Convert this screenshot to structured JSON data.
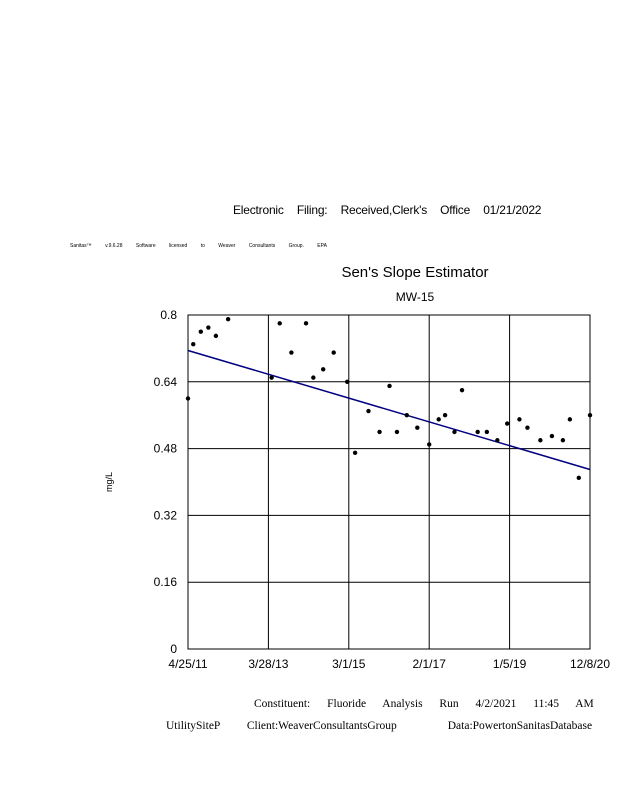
{
  "header": {
    "filing_text": "Electronic Filing: Received,Clerk's Office 01/21/2022",
    "software_line": "Sanitas™ v.9.6.28 Software licensed to Weaver Consultants Group. EPA"
  },
  "footer": {
    "constituent_line": "Constituent: Fluoride Analysis Run 4/2/2021 11:45 AM",
    "site": "UtilitySiteP",
    "client": "Client:WeaverConsultantsGroup",
    "data_source": "Data:PowertonSanitasDatabase"
  },
  "chart_data": {
    "type": "scatter",
    "title": "Sen's Slope Estimator",
    "subtitle": "MW-15",
    "ylabel": "mg/L",
    "xlabel": "",
    "ylim": [
      0,
      0.8
    ],
    "xlim": [
      "2011-04-25",
      "2020-12-08"
    ],
    "y_ticks": [
      "0",
      "0.16",
      "0.32",
      "0.48",
      "0.64",
      "0.8"
    ],
    "x_ticks": [
      "4/25/11",
      "3/28/13",
      "3/1/15",
      "2/1/17",
      "1/5/19",
      "12/8/20"
    ],
    "grid": true,
    "points": [
      {
        "x": "2011-04-25",
        "y": 0.6
      },
      {
        "x": "2011-06-10",
        "y": 0.73
      },
      {
        "x": "2011-08-15",
        "y": 0.76
      },
      {
        "x": "2011-10-20",
        "y": 0.77
      },
      {
        "x": "2011-12-25",
        "y": 0.75
      },
      {
        "x": "2012-04-10",
        "y": 0.79
      },
      {
        "x": "2013-04-25",
        "y": 0.65
      },
      {
        "x": "2013-07-05",
        "y": 0.78
      },
      {
        "x": "2013-10-15",
        "y": 0.71
      },
      {
        "x": "2014-02-20",
        "y": 0.78
      },
      {
        "x": "2014-04-25",
        "y": 0.65
      },
      {
        "x": "2014-07-20",
        "y": 0.67
      },
      {
        "x": "2014-10-20",
        "y": 0.71
      },
      {
        "x": "2015-02-15",
        "y": 0.64
      },
      {
        "x": "2015-04-25",
        "y": 0.47
      },
      {
        "x": "2015-08-20",
        "y": 0.57
      },
      {
        "x": "2015-11-25",
        "y": 0.52
      },
      {
        "x": "2016-02-20",
        "y": 0.63
      },
      {
        "x": "2016-04-25",
        "y": 0.52
      },
      {
        "x": "2016-07-20",
        "y": 0.56
      },
      {
        "x": "2016-10-20",
        "y": 0.53
      },
      {
        "x": "2017-02-01",
        "y": 0.49
      },
      {
        "x": "2017-04-25",
        "y": 0.55
      },
      {
        "x": "2017-06-20",
        "y": 0.56
      },
      {
        "x": "2017-09-10",
        "y": 0.52
      },
      {
        "x": "2017-11-15",
        "y": 0.62
      },
      {
        "x": "2018-04-01",
        "y": 0.52
      },
      {
        "x": "2018-06-20",
        "y": 0.52
      },
      {
        "x": "2018-09-20",
        "y": 0.5
      },
      {
        "x": "2018-12-15",
        "y": 0.54
      },
      {
        "x": "2019-04-01",
        "y": 0.55
      },
      {
        "x": "2019-06-10",
        "y": 0.53
      },
      {
        "x": "2019-10-01",
        "y": 0.5
      },
      {
        "x": "2020-01-10",
        "y": 0.51
      },
      {
        "x": "2020-04-15",
        "y": 0.5
      },
      {
        "x": "2020-06-15",
        "y": 0.55
      },
      {
        "x": "2020-09-01",
        "y": 0.41
      },
      {
        "x": "2020-12-08",
        "y": 0.56
      }
    ],
    "trend_line": {
      "start": {
        "x": "2011-04-25",
        "y": 0.715
      },
      "end": {
        "x": "2020-12-08",
        "y": 0.43
      }
    },
    "colors": {
      "points": "#000000",
      "trend": "#000080",
      "grid": "#000000"
    }
  }
}
